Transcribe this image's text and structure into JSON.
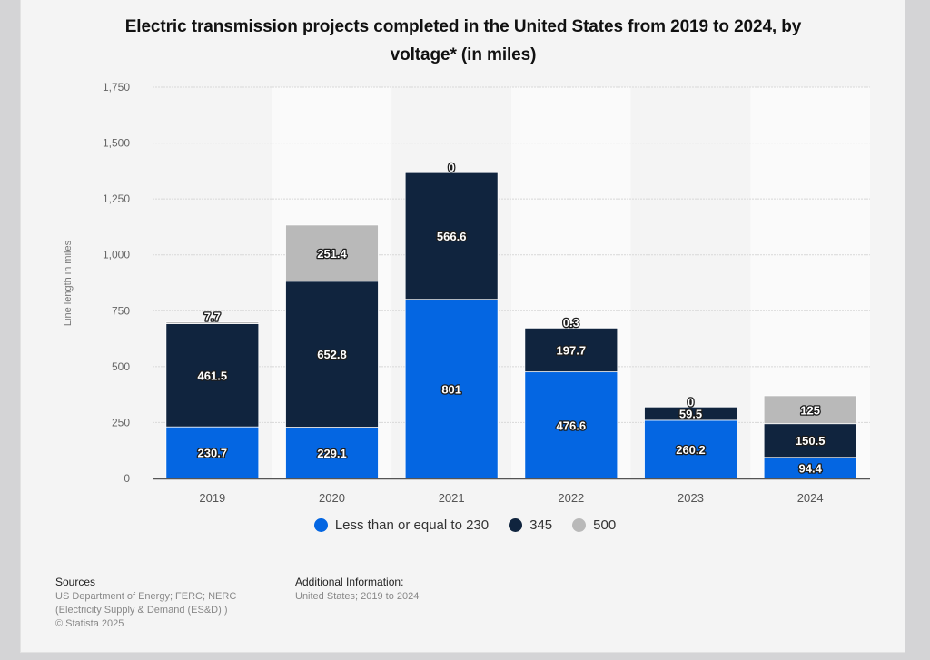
{
  "chart_data": {
    "type": "bar",
    "stacked": true,
    "title": "Electric transmission projects completed in the United States from 2019 to 2024, by voltage* (in miles)",
    "xlabel": "",
    "ylabel": "Line length in miles",
    "categories": [
      "2019",
      "2020",
      "2021",
      "2022",
      "2023",
      "2024"
    ],
    "ylim": [
      0,
      1750
    ],
    "yticks": [
      0,
      250,
      500,
      750,
      1000,
      1250,
      1500,
      1750
    ],
    "ytick_labels": [
      "0",
      "250",
      "500",
      "750",
      "1,000",
      "1,250",
      "1,500",
      "1,750"
    ],
    "grid": true,
    "legend_position": "bottom",
    "series": [
      {
        "name": "Less than or equal to 230",
        "color": "#0466e2",
        "values": [
          230.7,
          229.1,
          801,
          476.6,
          260.2,
          94.4
        ],
        "labels": [
          "230.7",
          "229.1",
          "801",
          "476.6",
          "260.2",
          "94.4"
        ]
      },
      {
        "name": "345",
        "color": "#10243e",
        "values": [
          461.5,
          652.8,
          566.6,
          197.7,
          59.5,
          150.5
        ],
        "labels": [
          "461.5",
          "652.8",
          "566.6",
          "197.7",
          "59.5",
          "150.5"
        ]
      },
      {
        "name": "500",
        "color": "#b9b9b9",
        "values": [
          7.7,
          251.4,
          0,
          0.3,
          0,
          125
        ],
        "labels": [
          "7.7",
          "251.4",
          "0",
          "0.3",
          "0",
          "125"
        ]
      }
    ]
  },
  "footer": {
    "sources_heading": "Sources",
    "sources_lines": [
      "US Department of Energy; FERC; NERC",
      "(Electricity Supply & Demand (ES&D) )",
      "© Statista 2025"
    ],
    "additional_heading": "Additional Information:",
    "additional_lines": [
      "United States; 2019 to 2024"
    ]
  }
}
